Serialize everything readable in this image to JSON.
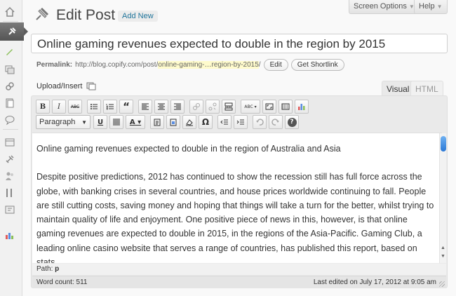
{
  "header": {
    "title": "Edit Post",
    "add_new_label": "Add New",
    "screen_options_label": "Screen Options",
    "help_label": "Help"
  },
  "post": {
    "title": "Online gaming revenues expected to double in the region by 2015"
  },
  "permalink": {
    "label": "Permalink:",
    "base": "http://blog.copify.com/post/",
    "slug": "online-gaming-…region-by-2015",
    "suffix": "/",
    "edit_label": "Edit",
    "shortlink_label": "Get Shortlink"
  },
  "editor": {
    "upload_label": "Upload/Insert",
    "visual_tab": "Visual",
    "html_tab": "HTML",
    "format_select": "Paragraph",
    "content": [
      "Online gaming revenues expected to double in the region of Australia and Asia",
      "Despite positive predictions, 2012 has continued to show the recession still has full force across the globe, with banking crises in several countries, and house prices worldwide continuing to fall. People are still cutting costs, saving money and hoping that things will take a turn for the better, whilst trying to maintain quality of life and enjoyment. One positive piece of news in this, however, is that online gaming revenues are expected to double in 2015, in the regions of the Asia-Pacific. Gaming Club, a leading online casino website that serves a range of countries, has published this report, based on stats"
    ],
    "path_label": "Path:",
    "path_value": "p",
    "word_count": "Word count: 511",
    "last_edited": "Last edited on July 17, 2012 at 9:05 am"
  },
  "toolbar": {
    "bold": "B",
    "italic": "I",
    "strike": "ABC",
    "quote": "“",
    "underline": "U",
    "text_color": "A",
    "omega": "Ω",
    "help": "?",
    "spell": "ABC"
  },
  "colors": {
    "link": "#21759b",
    "slug_highlight": "#fffbcc",
    "menu_current": "#5e5e5e"
  }
}
